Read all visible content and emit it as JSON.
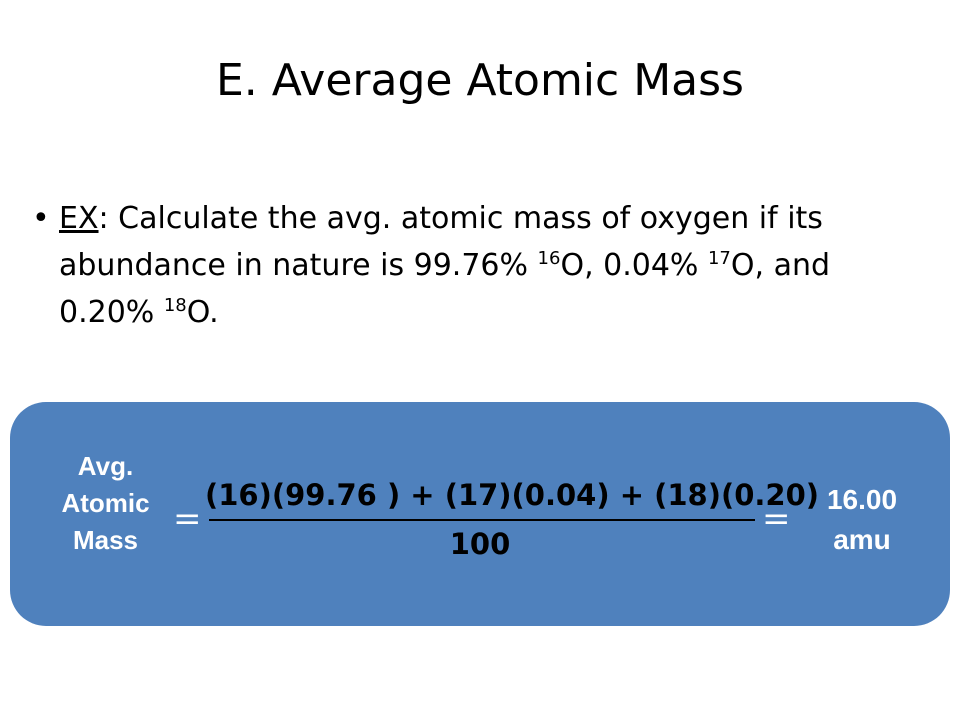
{
  "slide": {
    "title": "E. Average Atomic Mass"
  },
  "bullet": {
    "marker": "•",
    "lead": "EX",
    "text_1": ": Calculate the avg. atomic mass of oxygen if its abundance in nature is 99.76% ",
    "sup_1": "16",
    "text_2": "O, 0.04% ",
    "sup_2": "17",
    "text_3": "O, and 0.20% ",
    "sup_3": "18",
    "text_4": "O."
  },
  "formula": {
    "label_line_1": "Avg.",
    "label_line_2": "Atomic",
    "label_line_3": "Mass",
    "equals_1": "=",
    "numerator": "(16)(99.76 ) + (17)(0.04) + (18)(0.20)",
    "denominator": "100",
    "equals_2": "=",
    "result_line_1": "16.00",
    "result_line_2": "amu"
  },
  "colors": {
    "panel_fill": "#4f81bd",
    "panel_text": "#ffffff"
  }
}
